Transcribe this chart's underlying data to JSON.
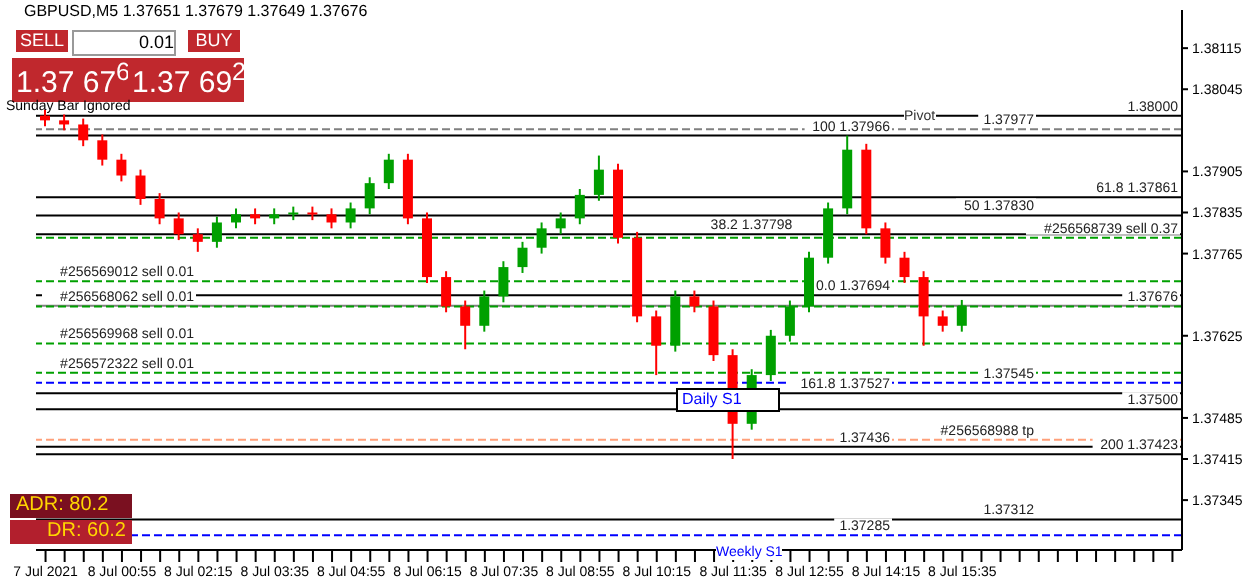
{
  "chart_data": {
    "type": "candlestick",
    "categories": [
      "7 Jul 2021",
      null,
      null,
      null,
      "8 Jul 00:55",
      null,
      null,
      null,
      "8 Jul 02:15",
      null,
      null,
      null,
      "8 Jul 03:35",
      null,
      null,
      null,
      "8 Jul 04:55",
      null,
      null,
      null,
      "8 Jul 06:15",
      null,
      null,
      null,
      "8 Jul 07:35",
      null,
      null,
      null,
      "8 Jul 08:55",
      null,
      null,
      null,
      "8 Jul 10:15",
      null,
      null,
      null,
      "8 Jul 11:35",
      null,
      null,
      null,
      "8 Jul 12:55",
      null,
      null,
      null,
      "8 Jul 14:15",
      null,
      null,
      null,
      "8 Jul 15:35",
      null,
      null,
      null,
      null,
      null,
      null,
      null,
      null,
      null,
      null,
      null
    ],
    "ohlc": [
      [
        1.38,
        1.3801,
        1.37982,
        1.37992
      ],
      [
        1.37992,
        1.38002,
        1.37975,
        1.37985
      ],
      [
        1.37985,
        1.37995,
        1.37948,
        1.37958
      ],
      [
        1.37958,
        1.37968,
        1.37915,
        1.37925
      ],
      [
        1.37925,
        1.37935,
        1.37888,
        1.37898
      ],
      [
        1.37898,
        1.37908,
        1.37848,
        1.37858
      ],
      [
        1.37858,
        1.37868,
        1.37815,
        1.37825
      ],
      [
        1.37825,
        1.37835,
        1.37788,
        1.37798
      ],
      [
        1.37798,
        1.37808,
        1.37768,
        1.37785
      ],
      [
        1.37785,
        1.37828,
        1.37775,
        1.37818
      ],
      [
        1.37818,
        1.37842,
        1.37808,
        1.37832
      ],
      [
        1.37832,
        1.37842,
        1.37815,
        1.37825
      ],
      [
        1.37825,
        1.37842,
        1.37815,
        1.37832
      ],
      [
        1.37832,
        1.37845,
        1.37822,
        1.37835
      ],
      [
        1.37835,
        1.37845,
        1.37822,
        1.37832
      ],
      [
        1.37832,
        1.37842,
        1.37808,
        1.37818
      ],
      [
        1.37818,
        1.37852,
        1.37808,
        1.37842
      ],
      [
        1.37842,
        1.37895,
        1.37832,
        1.37885
      ],
      [
        1.37885,
        1.37935,
        1.37875,
        1.37925
      ],
      [
        1.37925,
        1.37935,
        1.37815,
        1.37825
      ],
      [
        1.37825,
        1.37835,
        1.37715,
        1.37725
      ],
      [
        1.37725,
        1.37735,
        1.37665,
        1.37675
      ],
      [
        1.37675,
        1.37685,
        1.37602,
        1.37642
      ],
      [
        1.37642,
        1.37702,
        1.37632,
        1.37692
      ],
      [
        1.37692,
        1.37752,
        1.37682,
        1.37742
      ],
      [
        1.37742,
        1.37785,
        1.37732,
        1.37775
      ],
      [
        1.37775,
        1.37818,
        1.37765,
        1.37808
      ],
      [
        1.37808,
        1.37835,
        1.37798,
        1.37825
      ],
      [
        1.37825,
        1.37875,
        1.37815,
        1.37865
      ],
      [
        1.37865,
        1.37932,
        1.37855,
        1.37908
      ],
      [
        1.37908,
        1.37918,
        1.37782,
        1.37792
      ],
      [
        1.37792,
        1.37802,
        1.37648,
        1.37658
      ],
      [
        1.37658,
        1.37668,
        1.37558,
        1.37608
      ],
      [
        1.37608,
        1.37702,
        1.37598,
        1.37692
      ],
      [
        1.37692,
        1.37702,
        1.37665,
        1.37675
      ],
      [
        1.37675,
        1.37685,
        1.37582,
        1.37592
      ],
      [
        1.37592,
        1.37602,
        1.37415,
        1.37475
      ],
      [
        1.37475,
        1.37568,
        1.37465,
        1.37558
      ],
      [
        1.37558,
        1.37635,
        1.37548,
        1.37625
      ],
      [
        1.37625,
        1.37685,
        1.37615,
        1.37675
      ],
      [
        1.37675,
        1.37768,
        1.37665,
        1.37758
      ],
      [
        1.37758,
        1.37852,
        1.37748,
        1.37842
      ],
      [
        1.37842,
        1.37966,
        1.37832,
        1.37942
      ],
      [
        1.37942,
        1.37952,
        1.37798,
        1.37808
      ],
      [
        1.37808,
        1.37818,
        1.37748,
        1.37758
      ],
      [
        1.37758,
        1.37768,
        1.37715,
        1.37725
      ],
      [
        1.37725,
        1.37735,
        1.37608,
        1.37658
      ],
      [
        1.37658,
        1.37668,
        1.37632,
        1.37642
      ],
      [
        1.37642,
        1.37686,
        1.37632,
        1.37676
      ],
      null,
      null,
      null,
      null,
      null,
      null,
      null,
      null,
      null,
      null,
      null
    ],
    "colors": [
      "#ff0000",
      "#ff0000",
      "#ff0000",
      "#ff0000",
      "#ff0000",
      "#ff0000",
      "#ff0000",
      "#ff0000",
      "#ff0000",
      "#00a000",
      "#00a000",
      "#ff0000",
      "#00a000",
      "#00a000",
      "#ff0000",
      "#ff0000",
      "#00a000",
      "#00a000",
      "#00a000",
      "#ff0000",
      "#ff0000",
      "#ff0000",
      "#ff0000",
      "#00a000",
      "#00a000",
      "#00a000",
      "#00a000",
      "#00a000",
      "#00a000",
      "#00a000",
      "#ff0000",
      "#ff0000",
      "#ff0000",
      "#00a000",
      "#ff0000",
      "#ff0000",
      "#ff0000",
      "#00a000",
      "#00a000",
      "#00a000",
      "#00a000",
      "#00a000",
      "#00a000",
      "#ff0000",
      "#ff0000",
      "#ff0000",
      "#ff0000",
      "#ff0000",
      "#00a000",
      null,
      null,
      null,
      null,
      null,
      null,
      null,
      null,
      null,
      null,
      null
    ],
    "ylim": [
      1.3726,
      1.3818
    ],
    "yticks": [
      1.37345,
      1.37415,
      1.37485,
      1.37625,
      1.37765,
      1.37835,
      1.37905,
      1.38045,
      1.38115
    ],
    "ref_lines": [
      {
        "axis": "y",
        "value": 1.38,
        "label": "1.38000",
        "color": "#000000",
        "line_style": "solid"
      },
      {
        "axis": "y",
        "value": 1.37977,
        "label": "1.37977",
        "color": "#808080",
        "line_style": "dashed"
      },
      {
        "axis": "y",
        "value": 1.37966,
        "label": "100 1.37966",
        "color": "#000000",
        "line_style": "solid"
      },
      {
        "axis": "y",
        "value": 1.37861,
        "label": "61.8 1.37861",
        "color": "#000000",
        "line_style": "solid"
      },
      {
        "axis": "y",
        "value": 1.3783,
        "label": "50 1.37830",
        "color": "#000000",
        "line_style": "solid"
      },
      {
        "axis": "y",
        "value": 1.37798,
        "label": "38.2 1.37798",
        "color": "#000000",
        "line_style": "solid"
      },
      {
        "axis": "y",
        "value": 1.37792,
        "label": "#256568739 sell 0.37",
        "color": "#00a000",
        "line_style": "dashed"
      },
      {
        "axis": "y",
        "value": 1.37718,
        "label": "#256569012 sell 0.01",
        "color": "#00a000",
        "line_style": "dashed"
      },
      {
        "axis": "y",
        "value": 1.37694,
        "label": "0.0 1.37694",
        "color": "#000000",
        "line_style": "solid"
      },
      {
        "axis": "y",
        "value": 1.37676,
        "label": "1.37676",
        "color": "#808080",
        "line_style": "solid"
      },
      {
        "axis": "y",
        "value": 1.37675,
        "label": "#256568062 sell 0.01",
        "color": "#00a000",
        "line_style": "dashed"
      },
      {
        "axis": "y",
        "value": 1.37612,
        "label": "#256569968 sell 0.01",
        "color": "#00a000",
        "line_style": "dashed"
      },
      {
        "axis": "y",
        "value": 1.37562,
        "label": "#256572322 sell 0.01",
        "color": "#00a000",
        "line_style": "dashed"
      },
      {
        "axis": "y",
        "value": 1.37545,
        "label": "1.37545",
        "color": "#0000ff",
        "line_style": "dashed"
      },
      {
        "axis": "y",
        "value": 1.37527,
        "label": "161.8 1.37527",
        "color": "#000000",
        "line_style": "solid"
      },
      {
        "axis": "y",
        "value": 1.375,
        "label": "1.37500",
        "color": "#000000",
        "line_style": "solid"
      },
      {
        "axis": "y",
        "value": 1.37448,
        "label": "#256568988 tp",
        "color": "#ffa07a",
        "line_style": "dashed"
      },
      {
        "axis": "y",
        "value": 1.37436,
        "label": "1.37436",
        "color": "#000000",
        "line_style": "solid"
      },
      {
        "axis": "y",
        "value": 1.37423,
        "label": "200 1.37423",
        "color": "#000000",
        "line_style": "solid"
      },
      {
        "axis": "y",
        "value": 1.37312,
        "label": "1.37312",
        "color": "#000000",
        "line_style": "solid"
      },
      {
        "axis": "y",
        "value": 1.37285,
        "label": "1.37285",
        "color": "#0000ff",
        "line_style": "dashed"
      }
    ],
    "annotations": [
      "GBPUSD,M5  1.37651 1.37679 1.37649 1.37676",
      "SELL",
      "0.01",
      "BUY",
      "1.37 67$^{6}$",
      "1.37 69$^{2}$",
      "Sunday Bar Ignored",
      "Pivot",
      "Daily S1",
      "Weekly S1",
      "ADR: 80.2",
      "DR: 60.2"
    ]
  }
}
